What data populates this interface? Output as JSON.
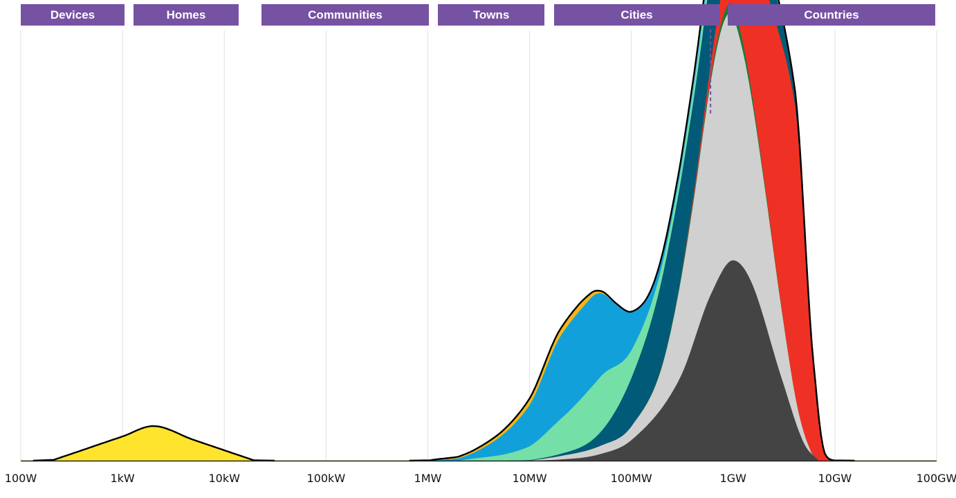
{
  "chart_data": {
    "type": "area",
    "stacked": true,
    "x_scale": "log10",
    "grid": true,
    "categories": [
      "Devices",
      "Homes",
      "Communities",
      "Towns",
      "Cities",
      "Countries"
    ],
    "x_ticks": [
      "100W",
      "1kW",
      "10kW",
      "100kW",
      "1MW",
      "10MW",
      "100MW",
      "1GW",
      "10GW",
      "100GW"
    ],
    "x_range": [
      "100W",
      "100GW"
    ],
    "reference_line": "600MW",
    "series": [
      {
        "color": "#444444",
        "points": [
          [
            "5MW",
            0
          ],
          [
            "20MW",
            0.002
          ],
          [
            "50MW",
            0.01
          ],
          [
            "100MW",
            0.03
          ],
          [
            "300MW",
            0.12
          ],
          [
            "600MW",
            0.24
          ],
          [
            "1GW",
            0.29
          ],
          [
            "1.5GW",
            0.26
          ],
          [
            "3GW",
            0.12
          ],
          [
            "5GW",
            0.025
          ],
          [
            "7GW",
            0
          ]
        ]
      },
      {
        "color": "#d0d0d0",
        "points": [
          [
            "10MW",
            0
          ],
          [
            "20MW",
            0.005
          ],
          [
            "50MW",
            0.012
          ],
          [
            "100MW",
            0.02
          ],
          [
            "200MW",
            0.06
          ],
          [
            "400MW",
            0.2
          ],
          [
            "700MW",
            0.34
          ],
          [
            "900MW",
            0.36
          ],
          [
            "1.2GW",
            0.32
          ],
          [
            "2GW",
            0.2
          ],
          [
            "4GW",
            0.04
          ],
          [
            "6GW",
            0
          ]
        ]
      },
      {
        "color": "#1a7a3a",
        "points": [
          [
            "100MW",
            0
          ],
          [
            "300MW",
            0.004
          ],
          [
            "700MW",
            0.008
          ],
          [
            "1GW",
            0.015
          ],
          [
            "2GW",
            0.005
          ],
          [
            "4GW",
            0
          ]
        ]
      },
      {
        "color": "#ee3124",
        "points": [
          [
            "300MW",
            0
          ],
          [
            "600MW",
            0.02
          ],
          [
            "1GW",
            0.08
          ],
          [
            "1.5GW",
            0.18
          ],
          [
            "2.5GW",
            0.34
          ],
          [
            "4GW",
            0.42
          ],
          [
            "6GW",
            0.15
          ],
          [
            "8GW",
            0.01
          ],
          [
            "10GW",
            0
          ]
        ]
      },
      {
        "color": "#015a78",
        "points": [
          [
            "5MW",
            0
          ],
          [
            "20MW",
            0.003
          ],
          [
            "50MW",
            0.02
          ],
          [
            "100MW",
            0.07
          ],
          [
            "300MW",
            0.14
          ],
          [
            "600MW",
            0.13
          ],
          [
            "1GW",
            0.13
          ],
          [
            "2GW",
            0.06
          ],
          [
            "4GW",
            0.02
          ],
          [
            "6GW",
            0
          ]
        ]
      },
      {
        "color": "#74e0a8",
        "points": [
          [
            "2MW",
            0
          ],
          [
            "10MW",
            0.02
          ],
          [
            "20MW",
            0.05
          ],
          [
            "50MW",
            0.08
          ],
          [
            "100MW",
            0.04
          ],
          [
            "300MW",
            0.015
          ],
          [
            "1GW",
            0.02
          ],
          [
            "2GW",
            0.005
          ],
          [
            "4GW",
            0
          ]
        ]
      },
      {
        "color": "#11a0d9",
        "points": [
          [
            "1MW",
            0
          ],
          [
            "3MW",
            0.01
          ],
          [
            "10MW",
            0.06
          ],
          [
            "20MW",
            0.12
          ],
          [
            "40MW",
            0.13
          ],
          [
            "70MW",
            0.09
          ],
          [
            "150MW",
            0.02
          ],
          [
            "300MW",
            0.004
          ],
          [
            "1GW",
            0
          ]
        ]
      },
      {
        "color": "#62c6ea",
        "points": [
          [
            "100MW",
            0
          ],
          [
            "300MW",
            0.008
          ],
          [
            "600MW",
            0.02
          ],
          [
            "1GW",
            0.025
          ],
          [
            "2GW",
            0.01
          ],
          [
            "4GW",
            0
          ]
        ]
      },
      {
        "color": "#ffe42e",
        "points": [
          [
            "200W",
            0
          ],
          [
            "1kW",
            0.035
          ],
          [
            "2kW",
            0.05
          ],
          [
            "5kW",
            0.03
          ],
          [
            "20kW",
            0
          ]
        ]
      },
      {
        "color": "#f5b419",
        "points": [
          [
            "1MW",
            0
          ],
          [
            "5MW",
            0.005
          ],
          [
            "15MW",
            0.01
          ],
          [
            "30MW",
            0.01
          ],
          [
            "50MW",
            0.003
          ],
          [
            "100MW",
            0
          ]
        ]
      }
    ]
  },
  "colors": {
    "category_band": "#7652a3",
    "gridline": "#e0e0e0",
    "outline": "#000000",
    "reference_line": "#7652a3"
  }
}
